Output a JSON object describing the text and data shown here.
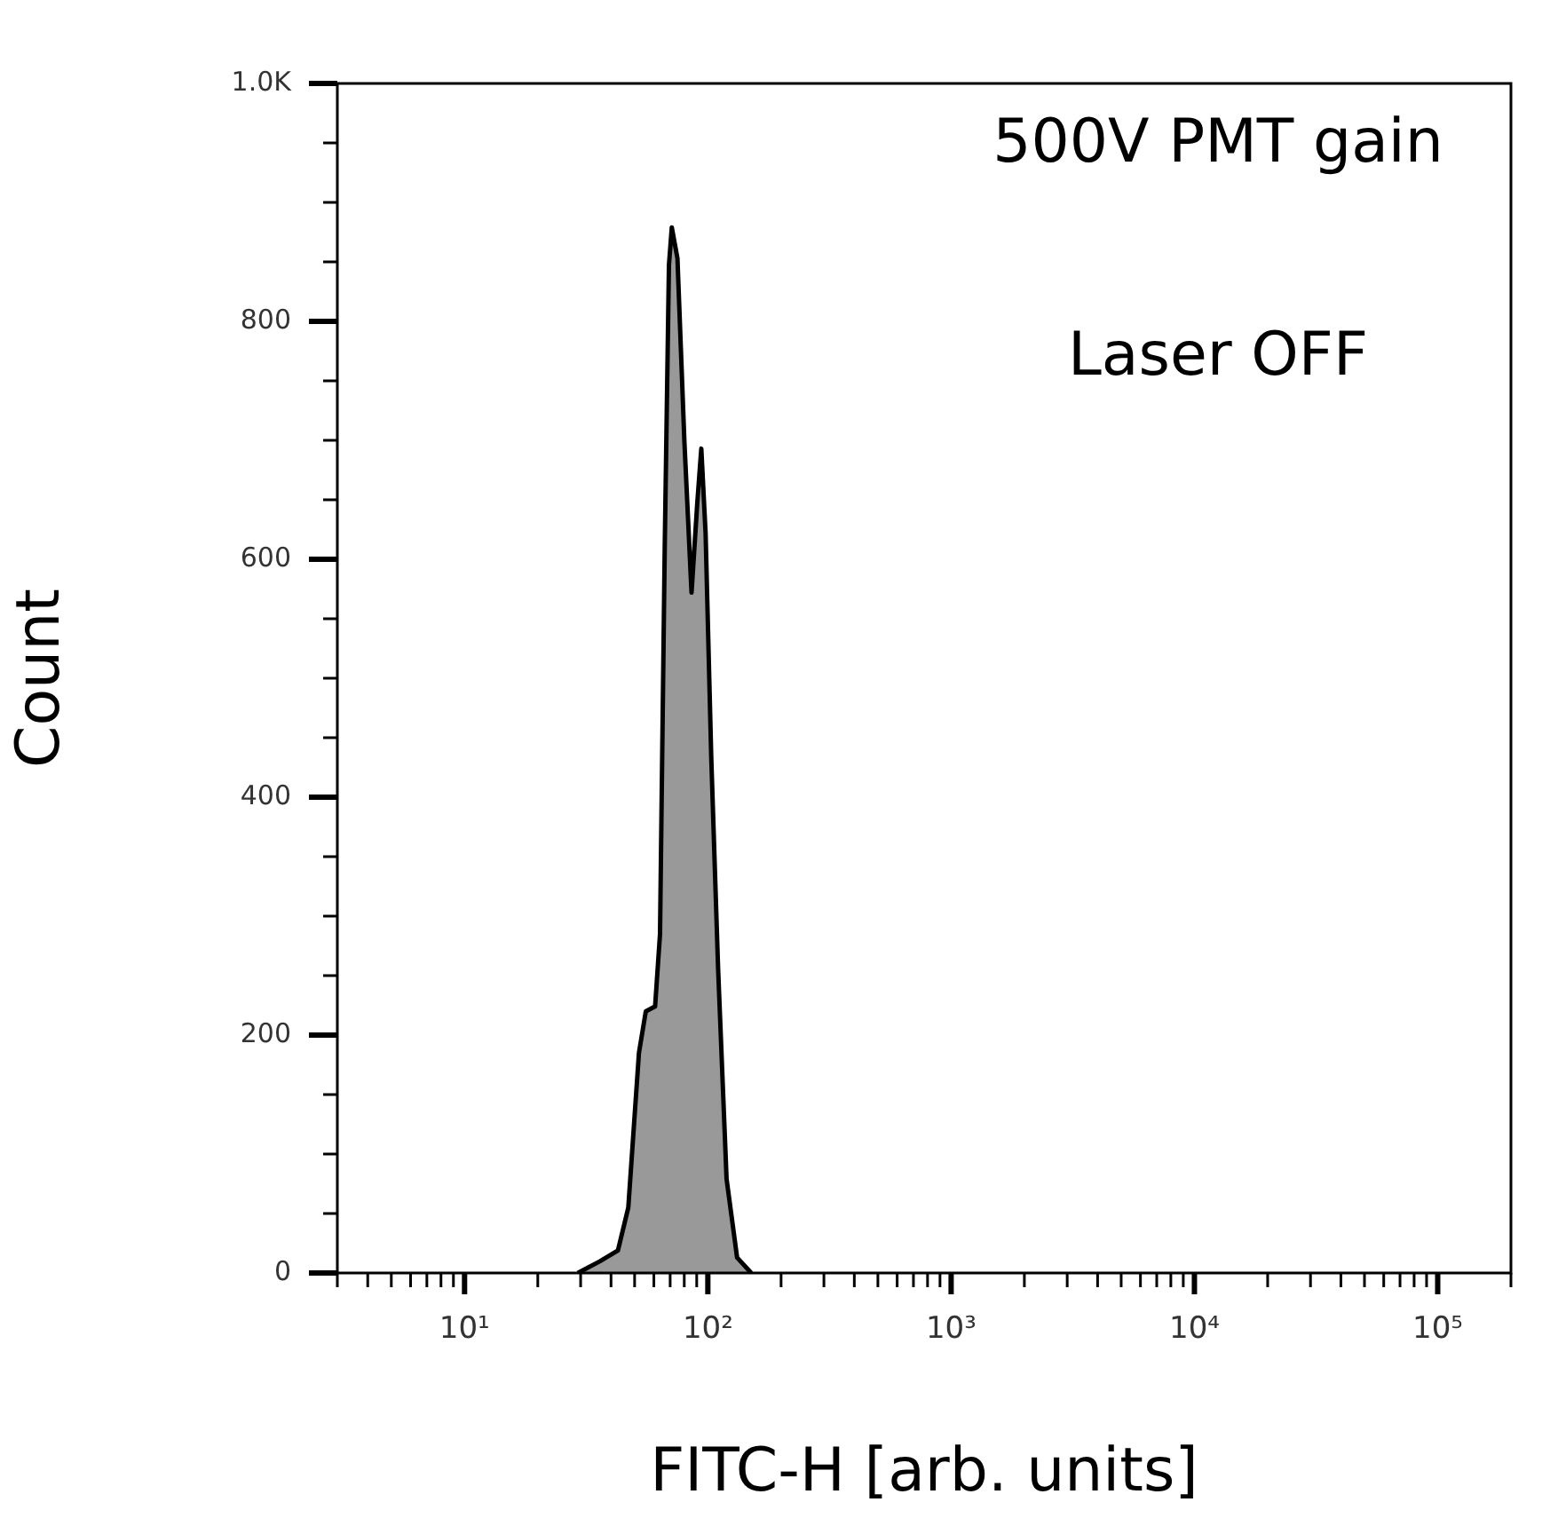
{
  "chart_data": {
    "type": "area",
    "xlabel": "FITC-H [arb. units]",
    "ylabel": "Count",
    "annotations": [
      "500V PMT gain",
      "Laser OFF"
    ],
    "log": "x",
    "legend": false,
    "grid": false,
    "xlim": [
      3,
      200000
    ],
    "ylim": [
      0,
      1000
    ],
    "xticks": [
      {
        "value": 3,
        "label": null
      },
      {
        "value": 4,
        "label": null
      },
      {
        "value": 5,
        "label": null
      },
      {
        "value": 6,
        "label": null
      },
      {
        "value": 7,
        "label": null
      },
      {
        "value": 8,
        "label": null
      },
      {
        "value": 9,
        "label": null
      },
      {
        "value": 10,
        "label": "10¹"
      },
      {
        "value": 20,
        "label": null
      },
      {
        "value": 30,
        "label": null
      },
      {
        "value": 40,
        "label": null
      },
      {
        "value": 50,
        "label": null
      },
      {
        "value": 60,
        "label": null
      },
      {
        "value": 70,
        "label": null
      },
      {
        "value": 80,
        "label": null
      },
      {
        "value": 90,
        "label": null
      },
      {
        "value": 100,
        "label": "10²"
      },
      {
        "value": 200,
        "label": null
      },
      {
        "value": 300,
        "label": null
      },
      {
        "value": 400,
        "label": null
      },
      {
        "value": 500,
        "label": null
      },
      {
        "value": 600,
        "label": null
      },
      {
        "value": 700,
        "label": null
      },
      {
        "value": 800,
        "label": null
      },
      {
        "value": 900,
        "label": null
      },
      {
        "value": 1000,
        "label": "10³"
      },
      {
        "value": 2000,
        "label": null
      },
      {
        "value": 3000,
        "label": null
      },
      {
        "value": 4000,
        "label": null
      },
      {
        "value": 5000,
        "label": null
      },
      {
        "value": 6000,
        "label": null
      },
      {
        "value": 7000,
        "label": null
      },
      {
        "value": 8000,
        "label": null
      },
      {
        "value": 9000,
        "label": null
      },
      {
        "value": 10000,
        "label": "10⁴"
      },
      {
        "value": 20000,
        "label": null
      },
      {
        "value": 30000,
        "label": null
      },
      {
        "value": 40000,
        "label": null
      },
      {
        "value": 50000,
        "label": null
      },
      {
        "value": 60000,
        "label": null
      },
      {
        "value": 70000,
        "label": null
      },
      {
        "value": 80000,
        "label": null
      },
      {
        "value": 90000,
        "label": null
      },
      {
        "value": 100000,
        "label": "10⁵"
      },
      {
        "value": 200000,
        "label": null
      }
    ],
    "yticks": [
      0,
      {
        "value": 50,
        "label": null
      },
      {
        "value": 100,
        "label": null
      },
      {
        "value": 150,
        "label": null
      },
      200,
      {
        "value": 250,
        "label": null
      },
      {
        "value": 300,
        "label": null
      },
      {
        "value": 350,
        "label": null
      },
      400,
      {
        "value": 450,
        "label": null
      },
      {
        "value": 500,
        "label": null
      },
      {
        "value": 550,
        "label": null
      },
      600,
      {
        "value": 650,
        "label": null
      },
      {
        "value": 700,
        "label": null
      },
      {
        "value": 750,
        "label": null
      },
      800,
      {
        "value": 850,
        "label": null
      },
      {
        "value": 900,
        "label": null
      },
      {
        "value": 950,
        "label": null
      },
      {
        "value": 1000,
        "label": "1.0K"
      }
    ],
    "series": [
      {
        "color": "#999999",
        "x": [
          29.2,
          36.1,
          42.7,
          47.1,
          52.1,
          55.6,
          60.7,
          63.6,
          66.5,
          69.2,
          71.1,
          75.0,
          80.1,
          85.7,
          90.4,
          94.0,
          97.9,
          103.3,
          110.2,
          119.4,
          131.9,
          150.8
        ],
        "values": [
          0,
          10,
          19,
          55,
          185,
          220,
          224,
          285,
          610,
          847,
          879,
          853,
          699,
          572,
          646,
          693,
          622,
          433,
          256,
          79,
          13,
          0
        ]
      }
    ]
  }
}
